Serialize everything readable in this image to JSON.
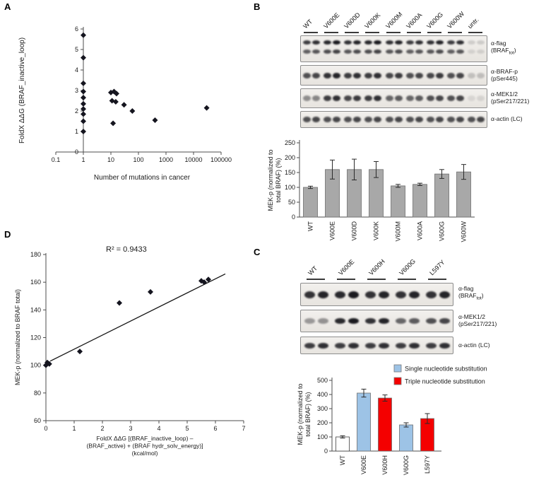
{
  "panel_labels": {
    "A": "A",
    "B": "B",
    "C": "C",
    "D": "D"
  },
  "chart_data": [
    {
      "id": "panelA",
      "type": "scatter",
      "xlabel": "Number of mutations in cancer",
      "ylabel": "FoldX ΔΔG (BRAF_inactive_loop)",
      "xscale": "log",
      "xlim": [
        0.1,
        100000
      ],
      "x_ticks": [
        "0.1",
        "1",
        "10",
        "100",
        "1000",
        "10000",
        "100000"
      ],
      "ylim": [
        0,
        6
      ],
      "y_ticks": [
        0,
        1,
        2,
        3,
        4,
        5,
        6
      ],
      "axis_cross_x": 1,
      "points": [
        [
          1,
          5.7
        ],
        [
          1,
          4.6
        ],
        [
          1,
          3.35
        ],
        [
          1,
          2.95
        ],
        [
          1,
          2.65
        ],
        [
          1,
          2.35
        ],
        [
          1,
          2.1
        ],
        [
          1,
          1.85
        ],
        [
          1,
          1.5
        ],
        [
          1,
          1.0
        ],
        [
          10,
          2.9
        ],
        [
          13,
          2.95
        ],
        [
          16,
          2.85
        ],
        [
          11,
          2.5
        ],
        [
          15,
          2.45
        ],
        [
          12,
          1.4
        ],
        [
          30,
          2.3
        ],
        [
          60,
          2.0
        ],
        [
          400,
          1.55
        ],
        [
          30000,
          2.15
        ]
      ]
    },
    {
      "id": "panelB_bar",
      "type": "bar",
      "ylabel_lines": [
        "MEK-p (normalized to",
        "total BRAF) (%)"
      ],
      "categories": [
        "WT",
        "V600E",
        "V600D",
        "V600K",
        "V600M",
        "V600A",
        "V600G",
        "V600W"
      ],
      "values": [
        100,
        160,
        160,
        160,
        105,
        110,
        145,
        152
      ],
      "errors": [
        4,
        32,
        35,
        27,
        5,
        4,
        15,
        25
      ],
      "ylim": [
        0,
        250
      ],
      "y_ticks": [
        0,
        50,
        100,
        150,
        200,
        250
      ],
      "bar_color": "#a8a8a8"
    },
    {
      "id": "panelC_bar",
      "type": "bar",
      "ylabel_lines": [
        "MEK-p (normalized to",
        "total BRAF) (%)"
      ],
      "categories": [
        "WT",
        "V600E",
        "V600H",
        "V600G",
        "L597Y"
      ],
      "values": [
        100,
        410,
        375,
        185,
        230
      ],
      "errors": [
        8,
        28,
        22,
        15,
        35
      ],
      "ylim": [
        0,
        500
      ],
      "y_ticks": [
        0,
        100,
        200,
        300,
        400,
        500
      ],
      "bar_colors": [
        "#ffffff",
        "#9dc3e6",
        "#f40000",
        "#9dc3e6",
        "#f40000"
      ],
      "legend": [
        {
          "label": "Single nucleotide substitution",
          "color": "#9dc3e6"
        },
        {
          "label": "Triple nucleotide substitution",
          "color": "#f40000"
        }
      ]
    },
    {
      "id": "panelD",
      "type": "scatter",
      "xlabel_lines": [
        "FoldX ΔΔG [(BRAF_inactive_loop) –",
        "(BRAF_active) + (BRAF hydr_solv_energy)]",
        "(kcal/mol)"
      ],
      "ylabel": "MEK-p (normalized to BRAF total)",
      "xlim": [
        0,
        7
      ],
      "x_ticks": [
        0,
        1,
        2,
        3,
        4,
        5,
        6,
        7
      ],
      "ylim": [
        60,
        180
      ],
      "y_ticks": [
        60,
        80,
        100,
        120,
        140,
        160,
        180
      ],
      "annotation": "R² = 0.9433",
      "points": [
        [
          0,
          100
        ],
        [
          0.05,
          102
        ],
        [
          0.12,
          101
        ],
        [
          1.2,
          110
        ],
        [
          2.6,
          145
        ],
        [
          3.7,
          153
        ],
        [
          5.5,
          161
        ],
        [
          5.6,
          160
        ],
        [
          5.75,
          162
        ]
      ],
      "trendline": [
        [
          0.15,
          103
        ],
        [
          6.35,
          166
        ]
      ]
    }
  ],
  "blots": {
    "B": {
      "lanes": [
        "WT",
        "V600E",
        "V600D",
        "V600K",
        "V600M",
        "V600A",
        "V600G",
        "V600W",
        "untr."
      ],
      "rows": [
        {
          "label_lines": [
            [
              {
                "t": "α-flag"
              }
            ],
            [
              {
                "t": "(BRAF"
              },
              {
                "t": "tot",
                "sub": true
              },
              {
                "t": ")"
              }
            ]
          ],
          "doublet": true,
          "intensities": [
            0.85,
            0.95,
            0.9,
            0.95,
            0.9,
            0.85,
            0.9,
            0.85,
            0.15
          ]
        },
        {
          "label_lines": [
            [
              {
                "t": "α-BRAF-p"
              }
            ],
            [
              {
                "t": "(pSer445)"
              }
            ]
          ],
          "intensities": [
            0.75,
            0.9,
            0.85,
            0.85,
            0.8,
            0.75,
            0.8,
            0.75,
            0.2
          ]
        },
        {
          "label_lines": [
            [
              {
                "t": "α-MEK1/2"
              }
            ],
            [
              {
                "t": "(pSer217/221)"
              }
            ]
          ],
          "intensities": [
            0.45,
            0.85,
            0.8,
            0.85,
            0.65,
            0.65,
            0.75,
            0.75,
            0.1
          ]
        },
        {
          "label_lines": [
            [
              {
                "t": "α-actin (LC)"
              }
            ]
          ],
          "intensities": [
            0.75,
            0.75,
            0.75,
            0.75,
            0.75,
            0.75,
            0.75,
            0.75,
            0.75
          ]
        }
      ]
    },
    "C": {
      "lanes": [
        "WT",
        "V600E",
        "V600H",
        "V600G",
        "L597Y"
      ],
      "rows": [
        {
          "label_lines": [
            [
              {
                "t": "α-flag"
              }
            ],
            [
              {
                "t": "(BRAF"
              },
              {
                "t": "tot",
                "sub": true
              },
              {
                "t": ")"
              }
            ]
          ],
          "intensities": [
            0.9,
            0.95,
            0.9,
            0.9,
            0.9
          ]
        },
        {
          "label_lines": [
            [
              {
                "t": "α-MEK1/2"
              }
            ],
            [
              {
                "t": "(pSer217/221)"
              }
            ]
          ],
          "intensities": [
            0.4,
            0.95,
            0.9,
            0.65,
            0.75
          ]
        },
        {
          "label_lines": [
            [
              {
                "t": "α-actin (LC)"
              }
            ]
          ],
          "intensities": [
            0.85,
            0.85,
            0.85,
            0.85,
            0.85
          ]
        }
      ]
    }
  }
}
